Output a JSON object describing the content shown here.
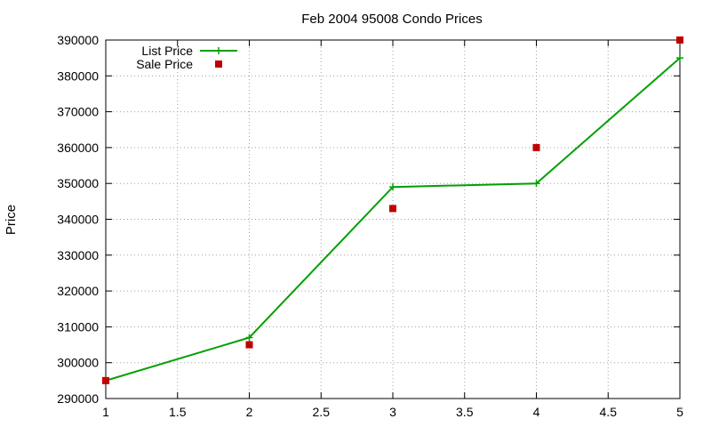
{
  "chart_data": {
    "type": "line",
    "title": "Feb 2004 95008 Condo Prices",
    "xlabel": "",
    "ylabel": "Price",
    "xlim": [
      1,
      5
    ],
    "ylim": [
      290000,
      390000
    ],
    "xticks": [
      "1",
      "1.5",
      "2",
      "2.5",
      "3",
      "3.5",
      "4",
      "4.5",
      "5"
    ],
    "yticks": [
      "290000",
      "300000",
      "310000",
      "320000",
      "330000",
      "340000",
      "350000",
      "360000",
      "370000",
      "380000",
      "390000"
    ],
    "grid": true,
    "legend_position": "top-left",
    "series": [
      {
        "name": "List Price",
        "style": "linespoints",
        "marker": "plus",
        "color": "#00a000",
        "x": [
          1,
          2,
          3,
          4,
          5
        ],
        "y": [
          295000,
          307000,
          349000,
          350000,
          385000
        ]
      },
      {
        "name": "Sale Price",
        "style": "points",
        "marker": "square",
        "color": "#c00000",
        "x": [
          1,
          2,
          3,
          4,
          5
        ],
        "y": [
          295000,
          305000,
          343000,
          360000,
          390000
        ]
      }
    ]
  }
}
